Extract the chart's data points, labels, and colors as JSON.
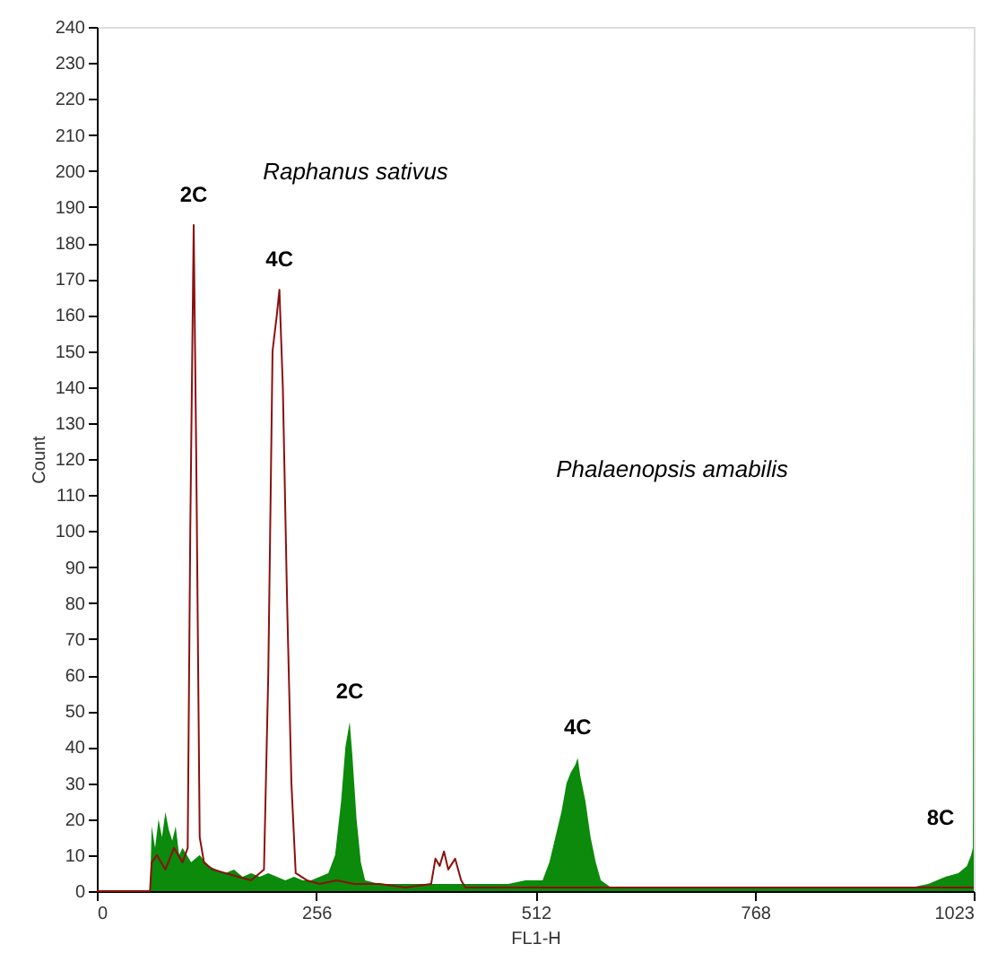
{
  "chart_data": {
    "type": "area",
    "xlabel": "FL1-H",
    "ylabel": "Count",
    "xlim": [
      0,
      1023
    ],
    "xticks": [
      0,
      256,
      512,
      768,
      1023
    ],
    "ylim": [
      0,
      240
    ],
    "yticks": [
      0,
      10,
      20,
      30,
      40,
      50,
      60,
      70,
      80,
      90,
      100,
      110,
      120,
      130,
      140,
      150,
      160,
      170,
      180,
      190,
      200,
      210,
      220,
      230,
      240
    ],
    "grid": false,
    "legend": false,
    "series": [
      {
        "color": "#0b8a0b",
        "x": [
          0,
          62,
          64,
          68,
          72,
          76,
          80,
          84,
          88,
          92,
          96,
          100,
          110,
          120,
          130,
          140,
          150,
          160,
          170,
          180,
          190,
          200,
          210,
          220,
          230,
          240,
          250,
          260,
          270,
          278,
          285,
          290,
          295,
          298,
          303,
          308,
          313,
          330,
          360,
          400,
          450,
          480,
          500,
          520,
          528,
          535,
          542,
          548,
          553,
          558,
          561,
          564,
          570,
          576,
          582,
          588,
          600,
          650,
          700,
          750,
          800,
          850,
          900,
          950,
          970,
          990,
          1005,
          1015,
          1020,
          1022,
          1023
        ],
        "values": [
          0,
          0,
          18,
          12,
          20,
          15,
          22,
          17,
          14,
          18,
          10,
          12,
          8,
          10,
          7,
          6,
          5,
          6,
          4,
          5,
          4,
          5,
          4,
          3,
          4,
          3,
          3,
          4,
          5,
          10,
          25,
          40,
          47,
          38,
          20,
          8,
          3,
          2,
          2,
          2,
          2,
          2,
          3,
          3,
          8,
          15,
          22,
          30,
          33,
          35,
          37,
          32,
          25,
          15,
          8,
          3,
          1,
          1,
          1,
          1,
          1,
          1,
          1,
          1,
          2,
          4,
          5,
          7,
          10,
          12,
          240
        ]
      },
      {
        "type": "line",
        "color": "#8b1010",
        "x": [
          0,
          62,
          64,
          70,
          80,
          90,
          100,
          106,
          109,
          113,
          116,
          120,
          125,
          135,
          150,
          165,
          180,
          195,
          200,
          205,
          210,
          213,
          217,
          222,
          227,
          232,
          245,
          260,
          280,
          300,
          330,
          360,
          390,
          395,
          400,
          405,
          410,
          418,
          425,
          430,
          480,
          520,
          600,
          700,
          800,
          900,
          1000,
          1023
        ],
        "values": [
          0,
          0,
          8,
          10,
          6,
          12,
          8,
          12,
          100,
          185,
          120,
          15,
          8,
          6,
          5,
          4,
          3,
          6,
          60,
          150,
          160,
          167,
          140,
          80,
          30,
          5,
          3,
          2,
          3,
          2,
          2,
          1,
          2,
          9,
          7,
          11,
          6,
          9,
          3,
          1,
          1,
          1,
          1,
          1,
          1,
          1,
          1,
          1
        ]
      }
    ],
    "annotations": [
      "Raphanus sativus",
      "Phalaenopsis amabilis",
      {
        "text": "2C",
        "x": 113,
        "y": 185
      },
      {
        "text": "4C",
        "x": 213,
        "y": 167
      },
      {
        "text": "2C",
        "x": 295,
        "y": 47
      },
      {
        "text": "4C",
        "x": 561,
        "y": 37
      },
      {
        "text": "8C",
        "x": 1022,
        "y": 12
      }
    ]
  }
}
